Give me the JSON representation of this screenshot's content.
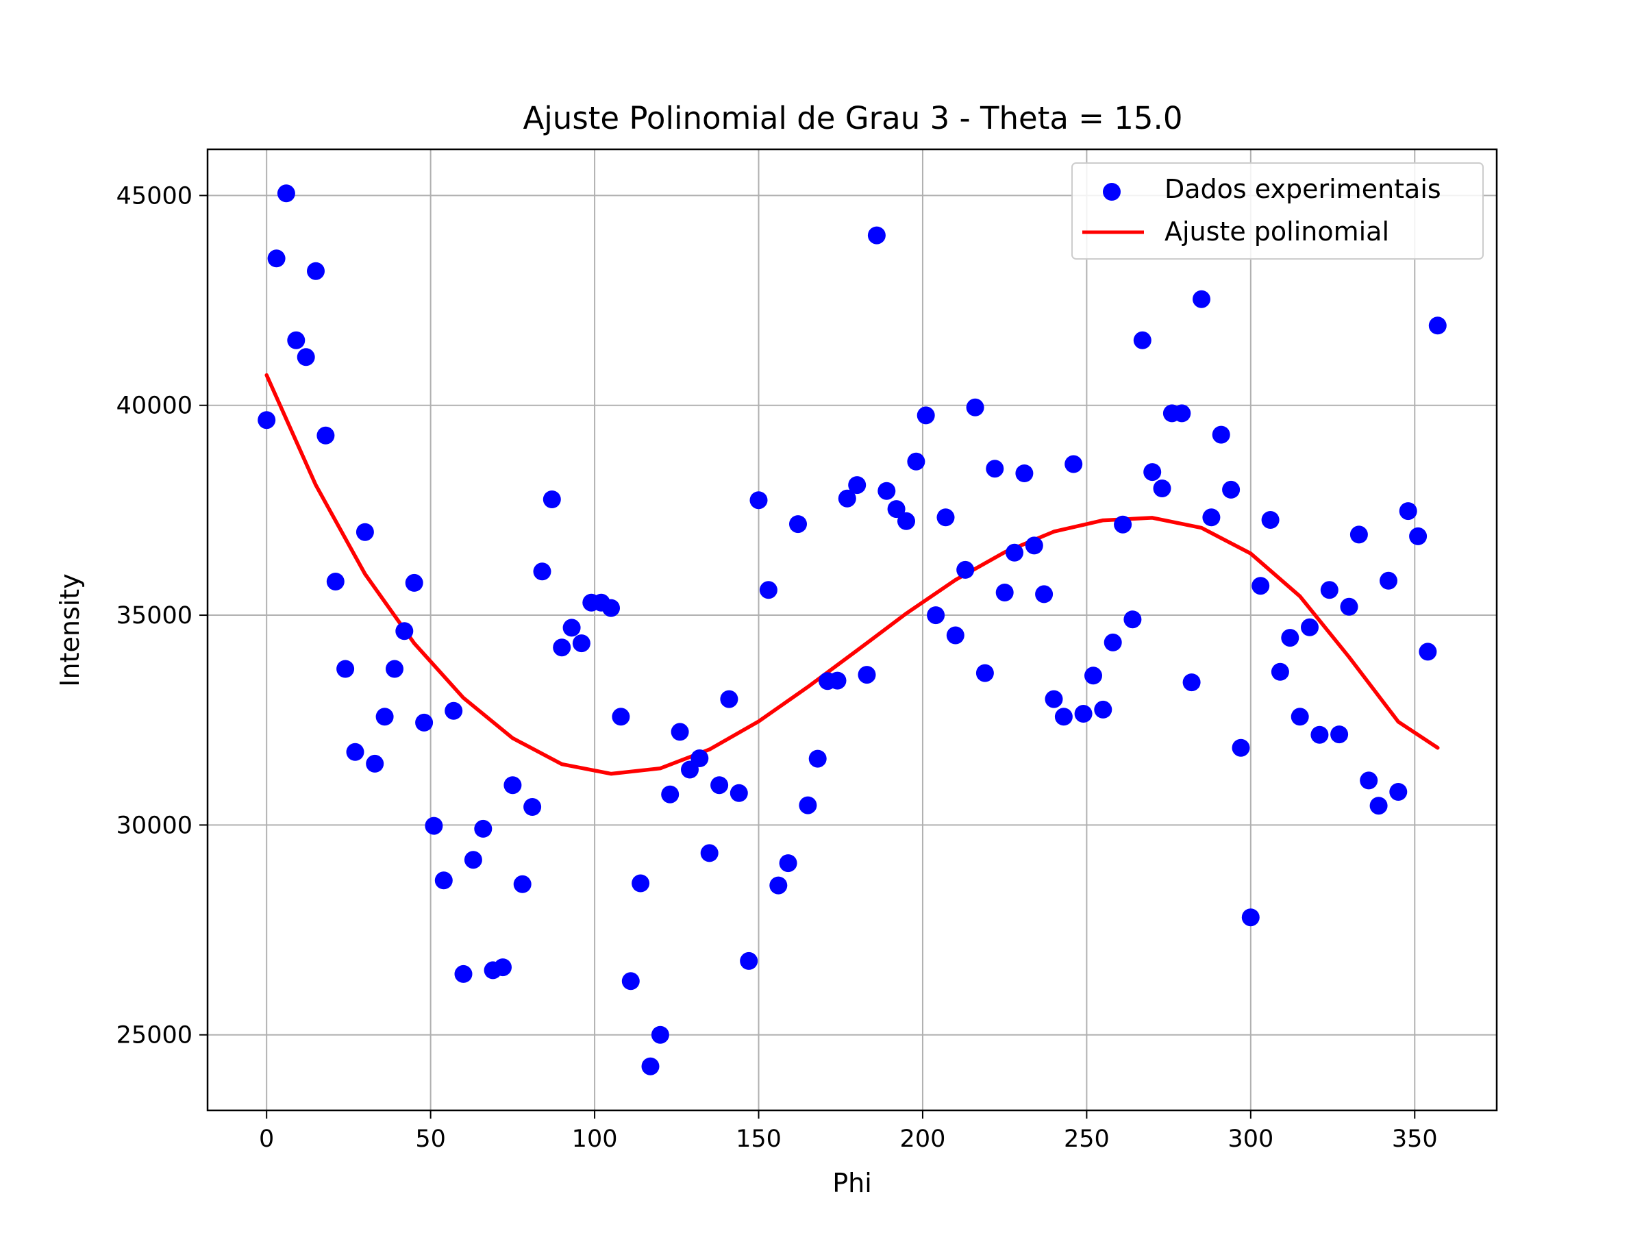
{
  "chart_data": {
    "type": "scatter",
    "title": "Ajuste Polinomial de Grau 3 - Theta = 15.0",
    "xlabel": "Phi",
    "ylabel": "Intensity",
    "xlim": [
      -18,
      375
    ],
    "ylim": [
      23200,
      46100
    ],
    "xticks": [
      0,
      50,
      100,
      150,
      200,
      250,
      300,
      350
    ],
    "yticks": [
      25000,
      30000,
      35000,
      40000,
      45000
    ],
    "xtick_labels": [
      "0",
      "50",
      "100",
      "150",
      "200",
      "250",
      "300",
      "350"
    ],
    "ytick_labels": [
      "25000",
      "30000",
      "35000",
      "40000",
      "45000"
    ],
    "grid": true,
    "legend_position": "top-right",
    "series": [
      {
        "name": "Dados experimentais",
        "kind": "scatter",
        "color": "#0000ff",
        "x": [
          0,
          3,
          6,
          9,
          12,
          15,
          18,
          21,
          24,
          27,
          30,
          33,
          36,
          39,
          42,
          45,
          48,
          51,
          54,
          57,
          60,
          63,
          66,
          69,
          72,
          75,
          78,
          81,
          84,
          87,
          90,
          93,
          96,
          99,
          102,
          105,
          108,
          111,
          114,
          117,
          120,
          123,
          126,
          129,
          132,
          135,
          138,
          141,
          144,
          147,
          150,
          153,
          156,
          159,
          162,
          165,
          168,
          171,
          174,
          177,
          180,
          183,
          186,
          189,
          192,
          195,
          198,
          201,
          204,
          207,
          210,
          213,
          216,
          219,
          222,
          225,
          228,
          231,
          234,
          237,
          240,
          243,
          246,
          249,
          252,
          255,
          258,
          261,
          264,
          267,
          270,
          273,
          276,
          279,
          282,
          285,
          288,
          291,
          294,
          297,
          300,
          303,
          306,
          309,
          312,
          315,
          318,
          321,
          324,
          327,
          330,
          333,
          336,
          339,
          342,
          345,
          348,
          351,
          354,
          357
        ],
        "y": [
          39650,
          43500,
          45050,
          41550,
          41150,
          43200,
          39280,
          35800,
          33720,
          31740,
          36980,
          31460,
          32580,
          33720,
          34620,
          35770,
          32440,
          29980,
          28680,
          32720,
          26450,
          29170,
          29910,
          26540,
          26610,
          30950,
          28590,
          30430,
          36040,
          37760,
          34230,
          34700,
          34330,
          35300,
          35300,
          35170,
          32580,
          26280,
          28610,
          24250,
          25000,
          30730,
          32220,
          31320,
          31590,
          29330,
          30950,
          33000,
          30760,
          26760,
          37740,
          35600,
          28560,
          29090,
          37170,
          30470,
          31580,
          33430,
          33440,
          37780,
          38100,
          33580,
          44050,
          37960,
          37530,
          37240,
          38660,
          39760,
          35000,
          37330,
          34520,
          36080,
          39950,
          33620,
          38490,
          35540,
          36490,
          38380,
          36660,
          35500,
          33000,
          32580,
          38600,
          32650,
          33560,
          32750,
          34350,
          37160,
          34900,
          41550,
          38410,
          38020,
          39810,
          39810,
          33400,
          42530,
          37330,
          39300,
          37990,
          31840,
          27800,
          35700,
          37270,
          33650,
          34460,
          32580,
          34710,
          32150,
          35600,
          32160,
          35200,
          36920,
          31060,
          30460,
          35820,
          30790,
          37480,
          36880,
          34130,
          41900
        ]
      },
      {
        "name": "Ajuste polinomial",
        "kind": "line",
        "color": "#ff0000",
        "x": [
          0,
          15,
          30,
          45,
          60,
          75,
          90,
          105,
          120,
          135,
          150,
          165,
          180,
          195,
          210,
          225,
          240,
          255,
          270,
          285,
          300,
          315,
          330,
          345,
          357
        ],
        "y": [
          40720,
          38100,
          35980,
          34330,
          33030,
          32070,
          31450,
          31220,
          31350,
          31800,
          32470,
          33290,
          34160,
          35040,
          35840,
          36500,
          36990,
          37260,
          37320,
          37080,
          36470,
          35450,
          34000,
          32460,
          31840
        ]
      }
    ]
  }
}
